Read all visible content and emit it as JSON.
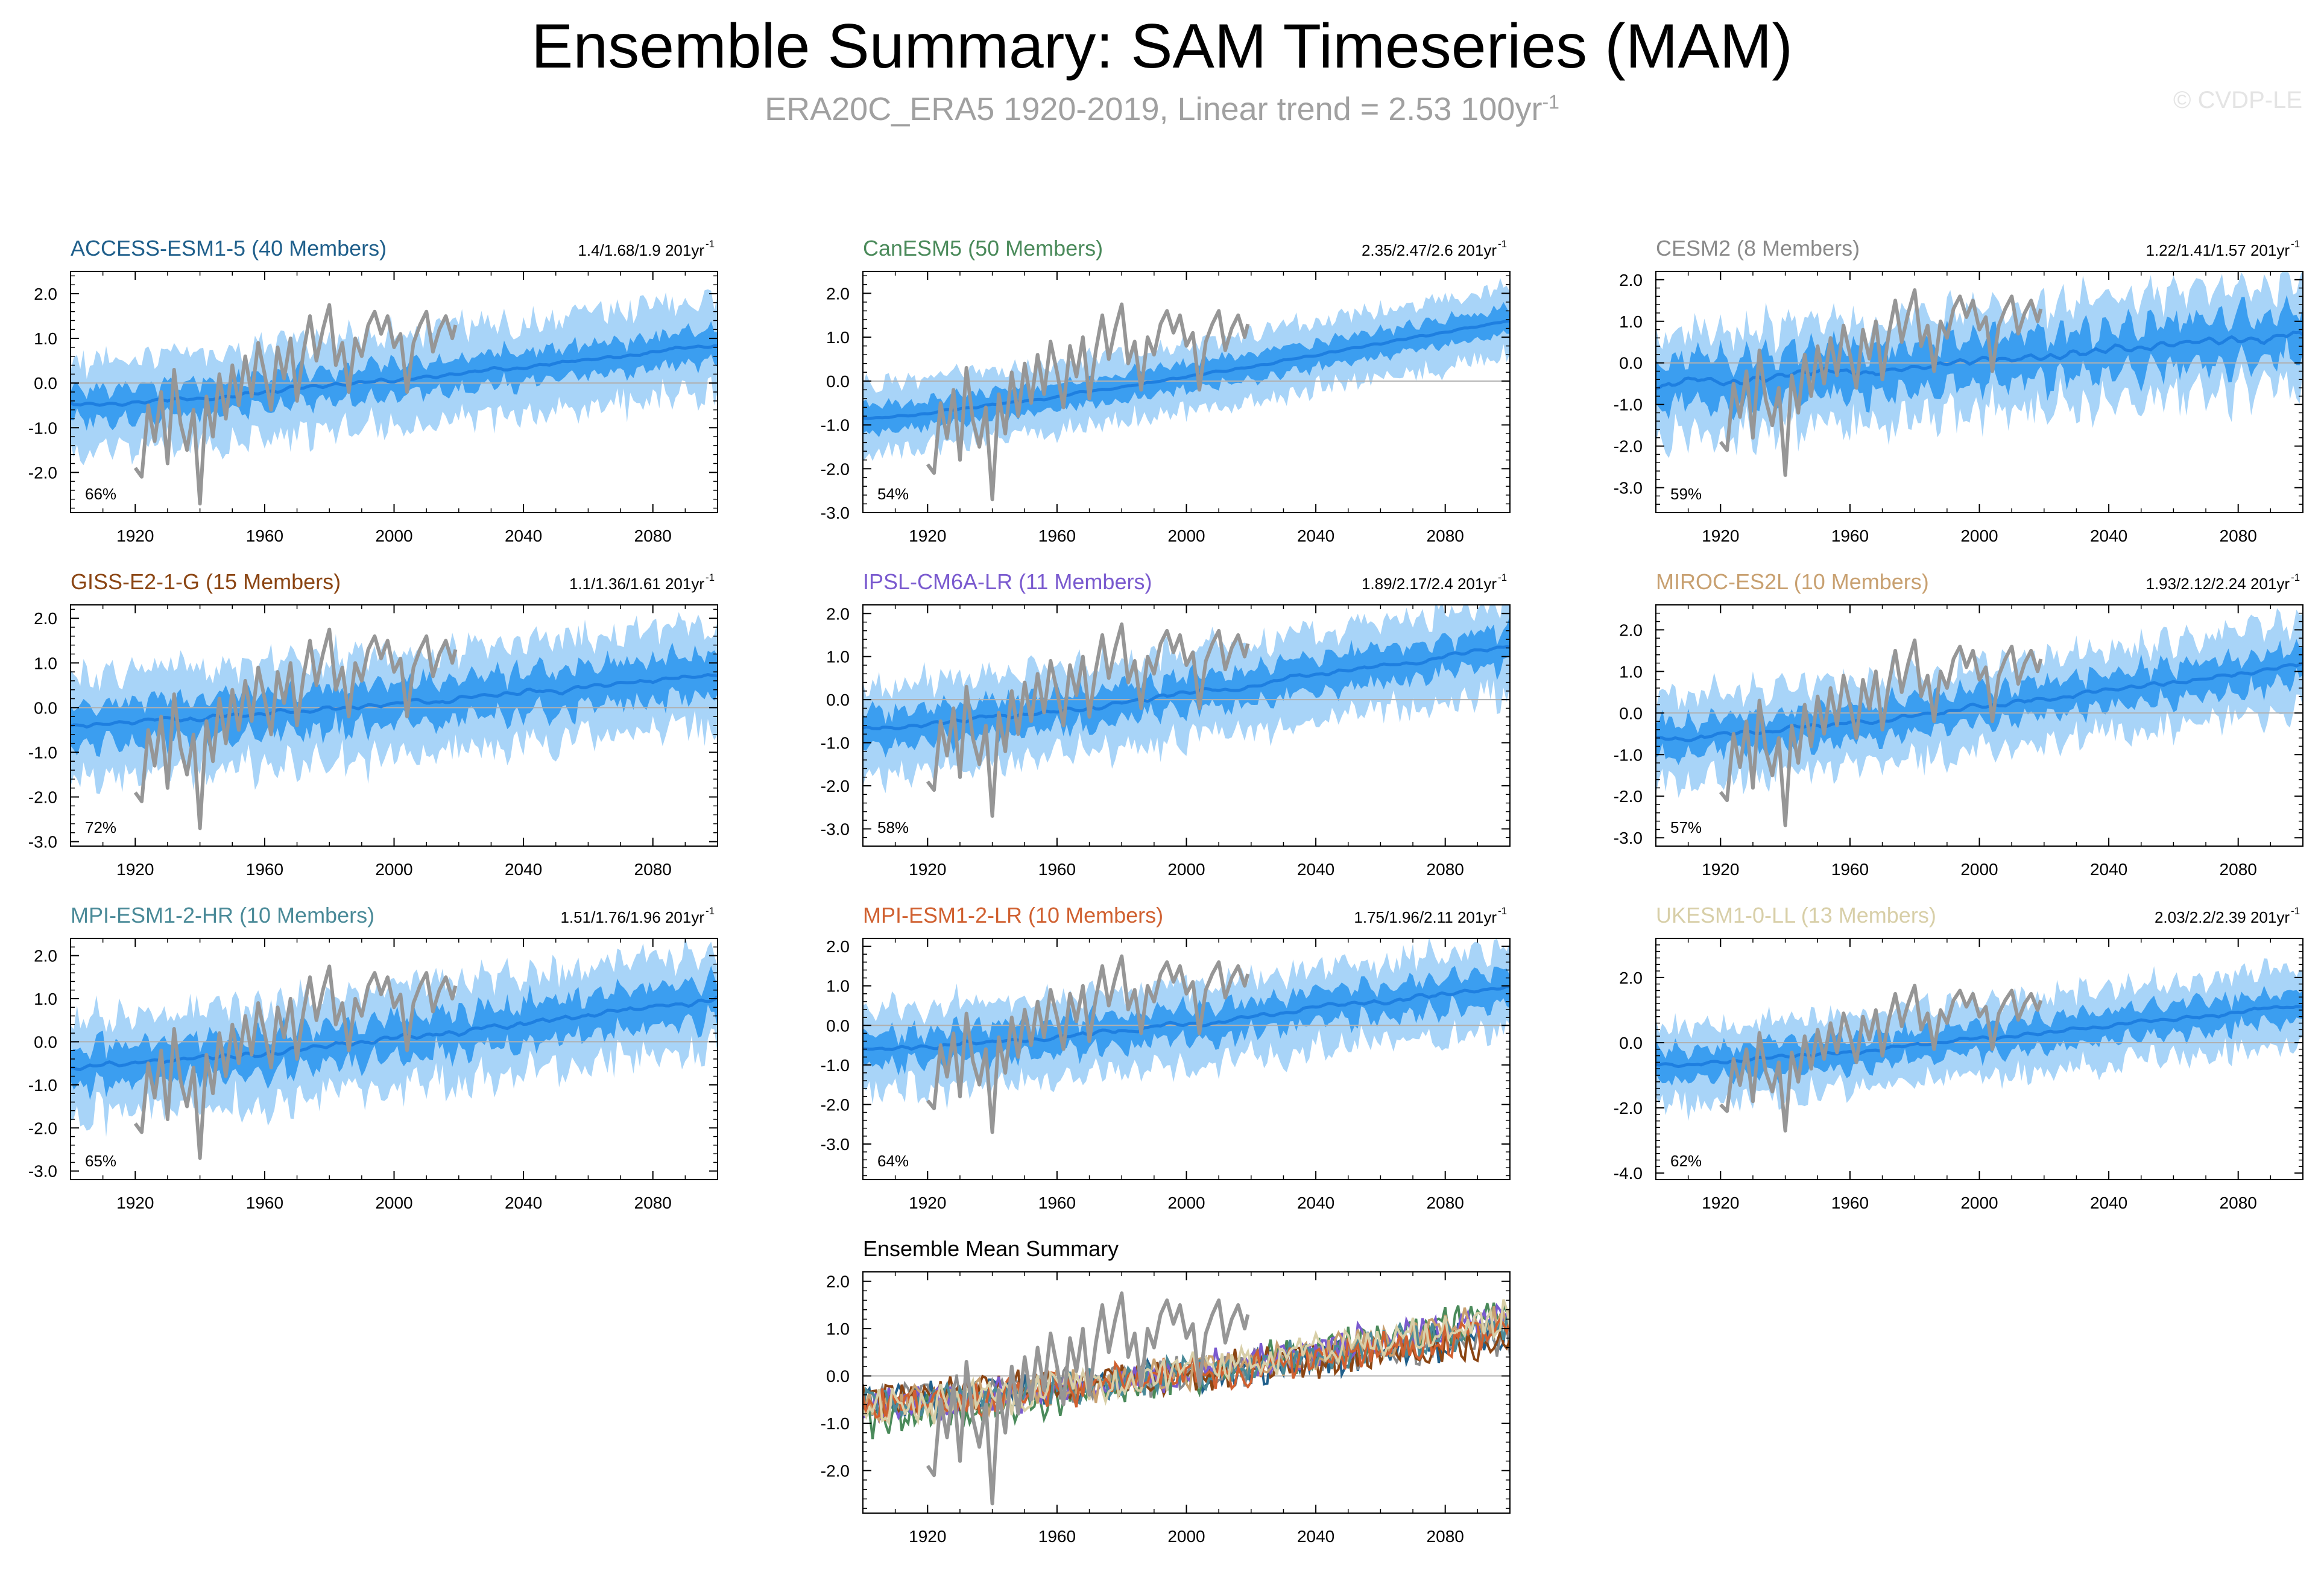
{
  "title": "Ensemble Summary: SAM Timeseries (MAM)",
  "subtitle": {
    "text": "ERA20C_ERA5 1920-2019, Linear trend = 2.53 100yr",
    "sup": "-1"
  },
  "copyright": "© CVDP-LE",
  "colors": {
    "outer_band": "#a8d4f8",
    "inner_band": "#3b9ef0",
    "mean_line": "#1e7fe0",
    "observations": "#969696",
    "zero_line": "#b0b0b0"
  },
  "chart_data": [
    {
      "type": "area",
      "panel": "ACCESS-ESM1-5",
      "title": "ACCESS-ESM1-5 (40 Members)",
      "title_color": "#1f5f8b",
      "trend_label": "1.4/1.68/1.9 201yr",
      "trend_sup": "-1",
      "percent_label": "66%",
      "xlim": [
        1900,
        2100
      ],
      "ylim": [
        -2.9,
        2.5
      ],
      "yticks": [
        -2.0,
        -1.0,
        0.0,
        1.0,
        2.0
      ],
      "ytick_labels": [
        "-2.0",
        "-1.0",
        "0.0",
        "1.0",
        "2.0"
      ],
      "xticks": [
        1920,
        1960,
        2000,
        2040,
        2080
      ],
      "xtick_labels": [
        "1920",
        "1960",
        "2000",
        "2040",
        "2080"
      ],
      "mean_start": -0.5,
      "mean_end": 0.85,
      "inner_half_width": 0.35,
      "outer_half_width": 1.0,
      "variability": 0.22
    },
    {
      "type": "area",
      "panel": "CanESM5",
      "title": "CanESM5 (50 Members)",
      "title_color": "#4a8a5a",
      "trend_label": "2.35/2.47/2.6 201yr",
      "trend_sup": "-1",
      "percent_label": "54%",
      "xlim": [
        1900,
        2100
      ],
      "ylim": [
        -3.0,
        2.5
      ],
      "yticks": [
        -3.0,
        -2.0,
        -1.0,
        0.0,
        1.0,
        2.0
      ],
      "ytick_labels": [
        "-3.0",
        "-2.0",
        "-1.0",
        "0.0",
        "1.0",
        "2.0"
      ],
      "xticks": [
        1920,
        1960,
        2000,
        2040,
        2080
      ],
      "xtick_labels": [
        "1920",
        "1960",
        "2000",
        "2040",
        "2080"
      ],
      "mean_start": -0.85,
      "mean_end": 1.4,
      "inner_half_width": 0.3,
      "outer_half_width": 0.75,
      "variability": 0.12
    },
    {
      "type": "area",
      "panel": "CESM2",
      "title": "CESM2 (8 Members)",
      "title_color": "#8a8a8a",
      "trend_label": "1.22/1.41/1.57 201yr",
      "trend_sup": "-1",
      "percent_label": "59%",
      "xlim": [
        1900,
        2100
      ],
      "ylim": [
        -3.6,
        2.2
      ],
      "yticks": [
        -3.0,
        -2.0,
        -1.0,
        0.0,
        1.0,
        2.0
      ],
      "ytick_labels": [
        "-3.0",
        "-2.0",
        "-1.0",
        "0.0",
        "1.0",
        "2.0"
      ],
      "xticks": [
        1920,
        1960,
        2000,
        2040,
        2080
      ],
      "xtick_labels": [
        "1920",
        "1960",
        "2000",
        "2040",
        "2080"
      ],
      "mean_start": -0.5,
      "mean_end": 0.7,
      "inner_half_width": 0.55,
      "outer_half_width": 1.2,
      "variability": 0.45
    },
    {
      "type": "area",
      "panel": "GISS-E2-1-G",
      "title": "GISS-E2-1-G (15 Members)",
      "title_color": "#8b4513",
      "trend_label": "1.1/1.36/1.61 201yr",
      "trend_sup": "-1",
      "percent_label": "72%",
      "xlim": [
        1900,
        2100
      ],
      "ylim": [
        -3.1,
        2.3
      ],
      "yticks": [
        -3.0,
        -2.0,
        -1.0,
        0.0,
        1.0,
        2.0
      ],
      "ytick_labels": [
        "-3.0",
        "-2.0",
        "-1.0",
        "0.0",
        "1.0",
        "2.0"
      ],
      "xticks": [
        1920,
        1960,
        2000,
        2040,
        2080
      ],
      "xtick_labels": [
        "1920",
        "1960",
        "2000",
        "2040",
        "2080"
      ],
      "mean_start": -0.4,
      "mean_end": 0.75,
      "inner_half_width": 0.45,
      "outer_half_width": 1.1,
      "variability": 0.3
    },
    {
      "type": "area",
      "panel": "IPSL-CM6A-LR",
      "title": "IPSL-CM6A-LR (11 Members)",
      "title_color": "#7a5acf",
      "trend_label": "1.89/2.17/2.4 201yr",
      "trend_sup": "-1",
      "percent_label": "58%",
      "xlim": [
        1900,
        2100
      ],
      "ylim": [
        -3.4,
        2.2
      ],
      "yticks": [
        -3.0,
        -2.0,
        -1.0,
        0.0,
        1.0,
        2.0
      ],
      "ytick_labels": [
        "-3.0",
        "-2.0",
        "-1.0",
        "0.0",
        "1.0",
        "2.0"
      ],
      "xticks": [
        1920,
        1960,
        2000,
        2040,
        2080
      ],
      "xtick_labels": [
        "1920",
        "1960",
        "2000",
        "2040",
        "2080"
      ],
      "mean_start": -0.7,
      "mean_end": 1.25,
      "inner_half_width": 0.4,
      "outer_half_width": 1.0,
      "variability": 0.28
    },
    {
      "type": "area",
      "panel": "MIROC-ES2L",
      "title": "MIROC-ES2L (10 Members)",
      "title_color": "#c8a070",
      "trend_label": "1.93/2.12/2.24 201yr",
      "trend_sup": "-1",
      "percent_label": "57%",
      "xlim": [
        1900,
        2100
      ],
      "ylim": [
        -3.2,
        2.6
      ],
      "yticks": [
        -3.0,
        -2.0,
        -1.0,
        0.0,
        1.0,
        2.0
      ],
      "ytick_labels": [
        "-3.0",
        "-2.0",
        "-1.0",
        "0.0",
        "1.0",
        "2.0"
      ],
      "xticks": [
        1920,
        1960,
        2000,
        2040,
        2080
      ],
      "xtick_labels": [
        "1920",
        "1960",
        "2000",
        "2040",
        "2080"
      ],
      "mean_start": -0.65,
      "mean_end": 1.2,
      "inner_half_width": 0.4,
      "outer_half_width": 1.0,
      "variability": 0.28
    },
    {
      "type": "area",
      "panel": "MPI-ESM1-2-HR",
      "title": "MPI-ESM1-2-HR (10 Members)",
      "title_color": "#4a8a98",
      "trend_label": "1.51/1.76/1.96 201yr",
      "trend_sup": "-1",
      "percent_label": "65%",
      "xlim": [
        1900,
        2100
      ],
      "ylim": [
        -3.2,
        2.4
      ],
      "yticks": [
        -3.0,
        -2.0,
        -1.0,
        0.0,
        1.0,
        2.0
      ],
      "ytick_labels": [
        "-3.0",
        "-2.0",
        "-1.0",
        "0.0",
        "1.0",
        "2.0"
      ],
      "xticks": [
        1920,
        1960,
        2000,
        2040,
        2080
      ],
      "xtick_labels": [
        "1920",
        "1960",
        "2000",
        "2040",
        "2080"
      ],
      "mean_start": -0.6,
      "mean_end": 1.0,
      "inner_half_width": 0.45,
      "outer_half_width": 1.1,
      "variability": 0.32
    },
    {
      "type": "area",
      "panel": "MPI-ESM1-2-LR",
      "title": "MPI-ESM1-2-LR (10 Members)",
      "title_color": "#d06030",
      "trend_label": "1.75/1.96/2.11 201yr",
      "trend_sup": "-1",
      "percent_label": "64%",
      "xlim": [
        1900,
        2100
      ],
      "ylim": [
        -3.9,
        2.2
      ],
      "yticks": [
        -3.0,
        -2.0,
        -1.0,
        0.0,
        1.0,
        2.0
      ],
      "ytick_labels": [
        "-3.0",
        "-2.0",
        "-1.0",
        "0.0",
        "1.0",
        "2.0"
      ],
      "xticks": [
        1920,
        1960,
        2000,
        2040,
        2080
      ],
      "xtick_labels": [
        "1920",
        "1960",
        "2000",
        "2040",
        "2080"
      ],
      "mean_start": -0.65,
      "mean_end": 1.0,
      "inner_half_width": 0.4,
      "outer_half_width": 1.0,
      "variability": 0.3
    },
    {
      "type": "area",
      "panel": "UKESM1-0-LL",
      "title": "UKESM1-0-LL (13 Members)",
      "title_color": "#d8cfa8",
      "trend_label": "2.03/2.2/2.39 201yr",
      "trend_sup": "-1",
      "percent_label": "62%",
      "xlim": [
        1900,
        2100
      ],
      "ylim": [
        -4.2,
        3.2
      ],
      "yticks": [
        -4.0,
        -2.0,
        0.0,
        2.0
      ],
      "ytick_labels": [
        "-4.0",
        "-2.0",
        "0.0",
        "2.0"
      ],
      "xticks": [
        1920,
        1960,
        2000,
        2040,
        2080
      ],
      "xtick_labels": [
        "1920",
        "1960",
        "2000",
        "2040",
        "2080"
      ],
      "mean_start": -0.7,
      "mean_end": 1.2,
      "inner_half_width": 0.45,
      "outer_half_width": 1.1,
      "variability": 0.3
    },
    {
      "type": "line",
      "panel": "Ensemble Mean Summary",
      "title": "Ensemble Mean Summary",
      "title_color": "#000000",
      "xlim": [
        1900,
        2100
      ],
      "ylim": [
        -2.9,
        2.2
      ],
      "yticks": [
        -2.0,
        -1.0,
        0.0,
        1.0,
        2.0
      ],
      "ytick_labels": [
        "-2.0",
        "-1.0",
        "0.0",
        "1.0",
        "2.0"
      ],
      "xticks": [
        1920,
        1960,
        2000,
        2040,
        2080
      ],
      "xtick_labels": [
        "1920",
        "1960",
        "2000",
        "2040",
        "2080"
      ],
      "series": [
        {
          "name": "ACCESS-ESM1-5",
          "color": "#1f5f8b",
          "start": -0.55,
          "end": 0.9
        },
        {
          "name": "CanESM5",
          "color": "#4a8a5a",
          "start": -0.9,
          "end": 1.35
        },
        {
          "name": "CESM2",
          "color": "#8a8a8a",
          "start": -0.5,
          "end": 0.85
        },
        {
          "name": "GISS-E2-1-G",
          "color": "#8b4513",
          "start": -0.45,
          "end": 0.8
        },
        {
          "name": "IPSL-CM6A-LR",
          "color": "#7a5acf",
          "start": -0.7,
          "end": 1.25
        },
        {
          "name": "MIROC-ES2L",
          "color": "#c8a070",
          "start": -0.65,
          "end": 1.2
        },
        {
          "name": "MPI-ESM1-2-HR",
          "color": "#4a8a98",
          "start": -0.6,
          "end": 1.0
        },
        {
          "name": "MPI-ESM1-2-LR",
          "color": "#d06030",
          "start": -0.65,
          "end": 1.0
        },
        {
          "name": "UKESM1-0-LL",
          "color": "#d8cfa8",
          "start": -0.7,
          "end": 1.25
        }
      ]
    }
  ],
  "observations": {
    "name": "ERA20C_ERA5",
    "years": [
      1920,
      2019
    ],
    "anchors": [
      [
        1920,
        -1.9
      ],
      [
        1922,
        -2.1
      ],
      [
        1924,
        -0.5
      ],
      [
        1926,
        -1.3
      ],
      [
        1928,
        -0.2
      ],
      [
        1930,
        -1.8
      ],
      [
        1932,
        0.3
      ],
      [
        1934,
        -0.9
      ],
      [
        1936,
        -1.5
      ],
      [
        1938,
        -0.6
      ],
      [
        1940,
        -2.7
      ],
      [
        1942,
        -0.3
      ],
      [
        1944,
        -1.2
      ],
      [
        1946,
        0.2
      ],
      [
        1948,
        -0.8
      ],
      [
        1950,
        0.4
      ],
      [
        1952,
        -0.5
      ],
      [
        1954,
        0.6
      ],
      [
        1956,
        -0.3
      ],
      [
        1958,
        0.9
      ],
      [
        1960,
        0.2
      ],
      [
        1962,
        -0.6
      ],
      [
        1964,
        0.8
      ],
      [
        1966,
        0.1
      ],
      [
        1968,
        1.0
      ],
      [
        1970,
        -0.4
      ],
      [
        1972,
        0.7
      ],
      [
        1974,
        1.5
      ],
      [
        1976,
        0.5
      ],
      [
        1978,
        1.2
      ],
      [
        1980,
        1.75
      ],
      [
        1982,
        0.4
      ],
      [
        1984,
        0.9
      ],
      [
        1986,
        -0.2
      ],
      [
        1988,
        1.0
      ],
      [
        1990,
        0.6
      ],
      [
        1992,
        1.3
      ],
      [
        1994,
        1.6
      ],
      [
        1996,
        1.1
      ],
      [
        1998,
        1.5
      ],
      [
        2000,
        0.8
      ],
      [
        2002,
        1.1
      ],
      [
        2004,
        -0.2
      ],
      [
        2006,
        0.9
      ],
      [
        2008,
        1.3
      ],
      [
        2010,
        1.6
      ],
      [
        2012,
        0.7
      ],
      [
        2014,
        1.2
      ],
      [
        2016,
        1.5
      ],
      [
        2018,
        1.0
      ],
      [
        2019,
        1.3
      ]
    ]
  }
}
